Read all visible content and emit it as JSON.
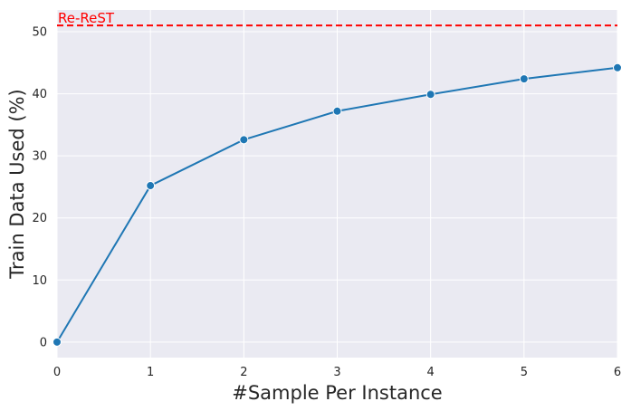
{
  "chart_data": {
    "type": "line",
    "xlabel": "#Sample Per Instance",
    "ylabel": "Train Data Used (%)",
    "xlim": [
      0,
      6
    ],
    "ylim": [
      -2.5,
      53.5
    ],
    "x_ticks": [
      0,
      1,
      2,
      3,
      4,
      5,
      6
    ],
    "y_ticks": [
      0,
      10,
      20,
      30,
      40,
      50
    ],
    "grid": true,
    "style": {
      "background": "#eaeaf2",
      "grid_color": "#ffffff",
      "line_color": "#1f77b4"
    },
    "series": [
      {
        "x": [
          0,
          1,
          2,
          3,
          4,
          5,
          6
        ],
        "y": [
          0.0,
          25.2,
          32.6,
          37.2,
          39.9,
          42.4,
          44.2
        ]
      }
    ],
    "reference_lines": [
      {
        "label": "Re-ReST",
        "y": 51.0,
        "color": "#ff0000",
        "style": "dashed"
      }
    ]
  }
}
